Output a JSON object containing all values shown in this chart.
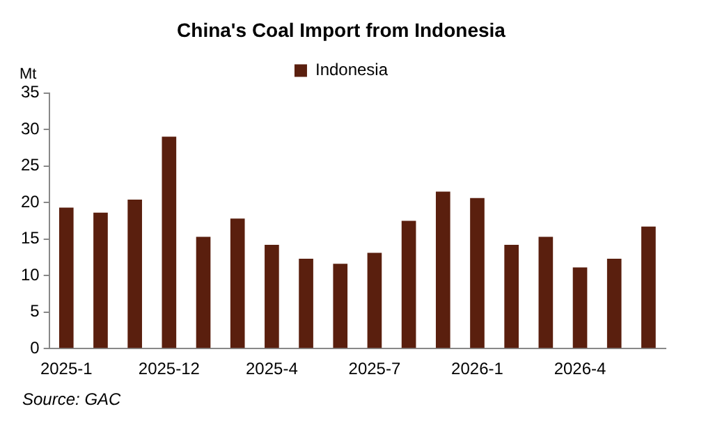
{
  "chart_data": {
    "type": "bar",
    "title": "China's Coal Import from Indonesia",
    "ylabel": "Mt",
    "categories": [
      "2025-1",
      null,
      null,
      "2025-12",
      null,
      null,
      "2025-4",
      null,
      null,
      "2025-7",
      null,
      null,
      "2026-1",
      null,
      null,
      "2026-4",
      null,
      null
    ],
    "series": [
      {
        "name": "Indonesia",
        "color": "#5a1f0e",
        "values": [
          19.3,
          18.6,
          20.4,
          29.0,
          15.3,
          17.8,
          14.2,
          12.3,
          11.6,
          13.1,
          17.5,
          21.5,
          20.6,
          14.2,
          15.3,
          11.1,
          12.3,
          16.7
        ]
      }
    ],
    "ylim": [
      0,
      35
    ],
    "yticks": [
      0,
      5,
      10,
      15,
      20,
      25,
      30,
      35
    ],
    "grid": false,
    "legend": "top",
    "annotations": [
      "Source: GAC"
    ]
  }
}
